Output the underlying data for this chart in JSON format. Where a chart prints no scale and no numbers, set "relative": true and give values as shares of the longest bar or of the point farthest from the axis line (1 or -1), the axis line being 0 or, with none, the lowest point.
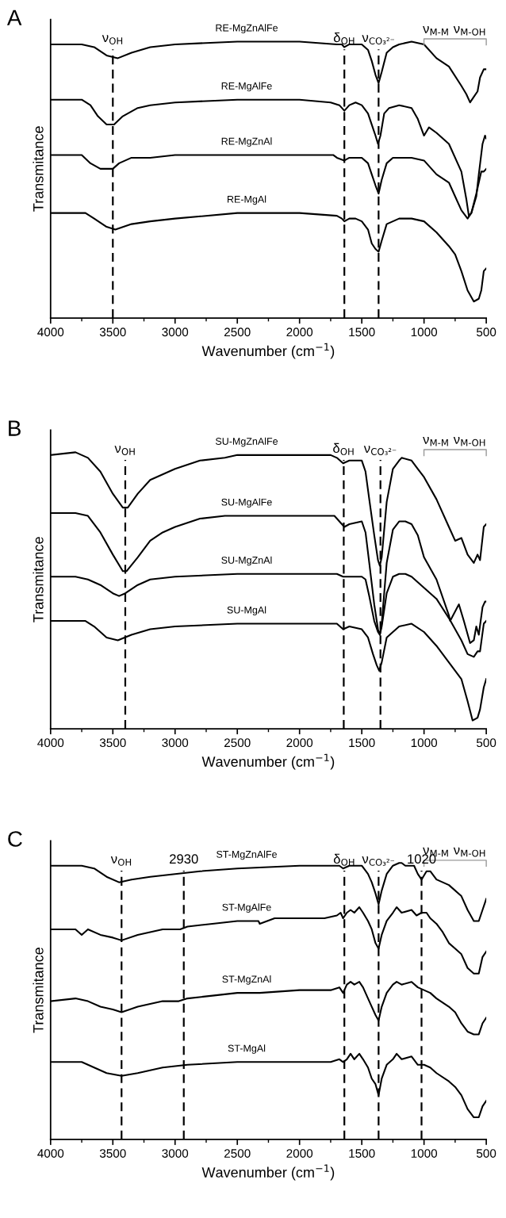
{
  "chart_data": [
    {
      "type": "line",
      "title": "A",
      "xlabel": "Wavenumber (cm$^{−1}$)",
      "ylabel": "Transmitance",
      "relative": true,
      "tick_labels": "x",
      "xlim": [
        4000,
        500
      ],
      "xticks": [
        4000,
        3500,
        3000,
        2500,
        2000,
        1500,
        1000,
        500
      ],
      "ref_lines": [
        {
          "axis": "x",
          "value": 3500,
          "label": "ν$_{OH}$",
          "line_style": "dashed",
          "color": "#000000"
        },
        {
          "axis": "x",
          "value": 1640,
          "label": "δ$_{OH}$",
          "line_style": "dashed",
          "color": "#000000"
        },
        {
          "axis": "x",
          "value": 1365,
          "label": "ν$_{CO₃²⁻}$",
          "line_style": "dashed",
          "color": "#000000"
        }
      ],
      "annotations": [
        "ν$_{M-M}$",
        "ν$_{M-OH}$"
      ],
      "series": [
        {
          "name": "RE-MgZnAlFe",
          "color": "#000000",
          "x": [
            4000,
            3750,
            3650,
            3550,
            3460,
            3350,
            3200,
            3000,
            2500,
            2000,
            1700,
            1660,
            1640,
            1600,
            1500,
            1450,
            1420,
            1390,
            1365,
            1340,
            1300,
            1250,
            1200,
            1100,
            1000,
            900,
            800,
            700,
            660,
            630,
            600,
            570,
            550,
            520,
            500
          ],
          "values": [
            0.99,
            0.99,
            0.98,
            0.95,
            0.94,
            0.96,
            0.98,
            0.99,
            1.0,
            1.0,
            0.99,
            0.99,
            0.98,
            0.99,
            0.99,
            0.97,
            0.93,
            0.88,
            0.85,
            0.89,
            0.96,
            0.98,
            0.99,
            1.0,
            0.99,
            0.94,
            0.91,
            0.84,
            0.81,
            0.78,
            0.8,
            0.82,
            0.87,
            0.9,
            0.9
          ]
        },
        {
          "name": "RE-MgAlFe",
          "color": "#000000",
          "x": [
            4000,
            3750,
            3680,
            3620,
            3550,
            3490,
            3420,
            3300,
            3200,
            3000,
            2500,
            2000,
            1750,
            1680,
            1640,
            1600,
            1550,
            1500,
            1450,
            1420,
            1390,
            1370,
            1350,
            1320,
            1280,
            1200,
            1100,
            1050,
            1000,
            960,
            900,
            800,
            700,
            660,
            640,
            620,
            580,
            560,
            530,
            510,
            500
          ],
          "values": [
            0.79,
            0.79,
            0.77,
            0.73,
            0.7,
            0.7,
            0.73,
            0.76,
            0.77,
            0.78,
            0.79,
            0.79,
            0.78,
            0.77,
            0.75,
            0.77,
            0.78,
            0.77,
            0.74,
            0.7,
            0.66,
            0.63,
            0.66,
            0.74,
            0.76,
            0.77,
            0.76,
            0.72,
            0.66,
            0.69,
            0.67,
            0.63,
            0.53,
            0.43,
            0.37,
            0.38,
            0.44,
            0.52,
            0.63,
            0.66,
            0.65
          ]
        },
        {
          "name": "RE-MgZnAl",
          "color": "#000000",
          "x": [
            4000,
            3750,
            3680,
            3600,
            3500,
            3450,
            3350,
            3200,
            3000,
            2500,
            2000,
            1730,
            1700,
            1640,
            1600,
            1500,
            1450,
            1420,
            1390,
            1365,
            1340,
            1300,
            1250,
            1100,
            1000,
            900,
            800,
            750,
            700,
            650,
            620,
            580,
            560,
            540,
            520,
            500
          ],
          "values": [
            0.59,
            0.59,
            0.56,
            0.54,
            0.54,
            0.56,
            0.58,
            0.58,
            0.59,
            0.59,
            0.59,
            0.59,
            0.58,
            0.57,
            0.58,
            0.58,
            0.56,
            0.52,
            0.48,
            0.45,
            0.5,
            0.56,
            0.58,
            0.58,
            0.57,
            0.52,
            0.49,
            0.44,
            0.39,
            0.36,
            0.38,
            0.45,
            0.49,
            0.53,
            0.53,
            0.54
          ]
        },
        {
          "name": "RE-MgAl",
          "color": "#000000",
          "x": [
            4000,
            3720,
            3650,
            3550,
            3480,
            3350,
            3200,
            3000,
            2500,
            2000,
            1700,
            1660,
            1640,
            1600,
            1550,
            1500,
            1450,
            1420,
            1390,
            1365,
            1340,
            1300,
            1200,
            1100,
            1000,
            900,
            800,
            750,
            700,
            650,
            600,
            560,
            540,
            520,
            500
          ],
          "values": [
            0.38,
            0.38,
            0.36,
            0.33,
            0.32,
            0.34,
            0.35,
            0.36,
            0.38,
            0.38,
            0.37,
            0.36,
            0.35,
            0.36,
            0.36,
            0.35,
            0.32,
            0.27,
            0.25,
            0.24,
            0.28,
            0.34,
            0.36,
            0.36,
            0.35,
            0.31,
            0.26,
            0.23,
            0.17,
            0.1,
            0.06,
            0.07,
            0.1,
            0.17,
            0.18
          ]
        }
      ]
    },
    {
      "type": "line",
      "title": "B",
      "xlabel": "Wavenumber (cm$^{−1}$)",
      "ylabel": "Transmitance",
      "relative": true,
      "tick_labels": "x",
      "xlim": [
        4000,
        500
      ],
      "xticks": [
        4000,
        3500,
        3000,
        2500,
        2000,
        1500,
        1000,
        500
      ],
      "ref_lines": [
        {
          "axis": "x",
          "value": 3400,
          "label": "ν$_{OH}$",
          "line_style": "dashed",
          "color": "#000000"
        },
        {
          "axis": "x",
          "value": 1645,
          "label": "δ$_{OH}$",
          "line_style": "dashed",
          "color": "#000000"
        },
        {
          "axis": "x",
          "value": 1350,
          "label": "ν$_{CO₃²⁻}$",
          "line_style": "dashed",
          "color": "#000000"
        }
      ],
      "annotations": [
        "ν$_{M-M}$",
        "ν$_{M-OH}$"
      ],
      "series": [
        {
          "name": "SU-MgZnAlFe",
          "color": "#000000",
          "x": [
            4000,
            3800,
            3700,
            3600,
            3500,
            3420,
            3380,
            3300,
            3200,
            3100,
            3000,
            2800,
            2600,
            2500,
            2000,
            1750,
            1700,
            1650,
            1600,
            1500,
            1470,
            1440,
            1400,
            1370,
            1355,
            1340,
            1300,
            1250,
            1200,
            1180,
            1100,
            1050,
            1000,
            900,
            800,
            750,
            700,
            650,
            600,
            570,
            550,
            520,
            500
          ],
          "values": [
            0.99,
            1.0,
            0.98,
            0.93,
            0.85,
            0.8,
            0.8,
            0.85,
            0.9,
            0.92,
            0.94,
            0.97,
            0.98,
            0.99,
            0.99,
            0.99,
            0.98,
            0.96,
            0.97,
            0.97,
            0.93,
            0.83,
            0.7,
            0.61,
            0.59,
            0.62,
            0.82,
            0.94,
            0.97,
            0.98,
            0.97,
            0.94,
            0.91,
            0.83,
            0.73,
            0.68,
            0.69,
            0.63,
            0.6,
            0.63,
            0.61,
            0.73,
            0.74
          ]
        },
        {
          "name": "SU-MgAlFe",
          "color": "#000000",
          "x": [
            4000,
            3800,
            3700,
            3600,
            3500,
            3420,
            3390,
            3300,
            3200,
            3100,
            3000,
            2800,
            2600,
            2500,
            2000,
            1720,
            1680,
            1640,
            1600,
            1500,
            1470,
            1440,
            1400,
            1370,
            1355,
            1340,
            1300,
            1250,
            1200,
            1150,
            1100,
            1050,
            1000,
            900,
            800,
            790,
            720,
            680,
            630,
            600,
            580,
            560,
            530,
            510,
            500
          ],
          "values": [
            0.78,
            0.78,
            0.77,
            0.71,
            0.63,
            0.57,
            0.57,
            0.62,
            0.68,
            0.71,
            0.73,
            0.76,
            0.77,
            0.77,
            0.77,
            0.77,
            0.75,
            0.73,
            0.74,
            0.75,
            0.71,
            0.6,
            0.45,
            0.36,
            0.34,
            0.38,
            0.6,
            0.72,
            0.75,
            0.75,
            0.74,
            0.7,
            0.62,
            0.54,
            0.41,
            0.39,
            0.45,
            0.39,
            0.31,
            0.32,
            0.37,
            0.34,
            0.44,
            0.46,
            0.46
          ]
        },
        {
          "name": "SU-MgZnAl",
          "color": "#000000",
          "x": [
            4000,
            3800,
            3700,
            3600,
            3500,
            3450,
            3400,
            3300,
            3200,
            3000,
            2500,
            2000,
            1750,
            1700,
            1650,
            1600,
            1500,
            1470,
            1440,
            1400,
            1370,
            1355,
            1340,
            1300,
            1250,
            1200,
            1150,
            1100,
            1000,
            900,
            800,
            750,
            700,
            650,
            600,
            570,
            550,
            520,
            500
          ],
          "values": [
            0.55,
            0.55,
            0.54,
            0.52,
            0.49,
            0.48,
            0.49,
            0.52,
            0.54,
            0.55,
            0.56,
            0.56,
            0.56,
            0.56,
            0.55,
            0.55,
            0.55,
            0.54,
            0.48,
            0.39,
            0.35,
            0.34,
            0.37,
            0.49,
            0.55,
            0.56,
            0.56,
            0.55,
            0.51,
            0.47,
            0.4,
            0.36,
            0.32,
            0.27,
            0.26,
            0.28,
            0.28,
            0.38,
            0.39
          ]
        },
        {
          "name": "SU-MgAl",
          "color": "#000000",
          "x": [
            4000,
            3720,
            3650,
            3550,
            3460,
            3350,
            3200,
            3000,
            2500,
            2000,
            1700,
            1650,
            1600,
            1500,
            1450,
            1410,
            1380,
            1360,
            1340,
            1300,
            1200,
            1100,
            1000,
            900,
            800,
            700,
            650,
            610,
            570,
            550,
            520,
            500
          ],
          "values": [
            0.39,
            0.39,
            0.37,
            0.33,
            0.32,
            0.34,
            0.36,
            0.37,
            0.38,
            0.38,
            0.38,
            0.36,
            0.37,
            0.36,
            0.33,
            0.27,
            0.23,
            0.21,
            0.24,
            0.33,
            0.37,
            0.38,
            0.35,
            0.3,
            0.24,
            0.18,
            0.1,
            0.03,
            0.04,
            0.07,
            0.15,
            0.18
          ]
        }
      ]
    },
    {
      "type": "line",
      "title": "C",
      "xlabel": "Wavenumber (cm$^{−1}$)",
      "ylabel": "Transmitance",
      "relative": true,
      "tick_labels": "x",
      "xlim": [
        4000,
        500
      ],
      "xticks": [
        4000,
        3500,
        3000,
        2500,
        2000,
        1500,
        1000,
        500
      ],
      "ref_lines": [
        {
          "axis": "x",
          "value": 3430,
          "label": "ν$_{OH}$",
          "line_style": "dashed",
          "color": "#000000"
        },
        {
          "axis": "x",
          "value": 2930,
          "label": "2930",
          "line_style": "dashed",
          "color": "#000000"
        },
        {
          "axis": "x",
          "value": 1640,
          "label": "δ$_{OH}$",
          "line_style": "dashed",
          "color": "#000000"
        },
        {
          "axis": "x",
          "value": 1365,
          "label": "ν$_{CO₃²⁻}$",
          "line_style": "dashed",
          "color": "#000000"
        },
        {
          "axis": "x",
          "value": 1020,
          "label": "1020",
          "line_style": "dashed",
          "color": "#000000"
        }
      ],
      "annotations": [
        "ν$_{M-M}$",
        "ν$_{M-OH}$"
      ],
      "series": [
        {
          "name": "ST-MgZnAlFe",
          "color": "#000000",
          "x": [
            4000,
            3750,
            3650,
            3550,
            3450,
            3350,
            3200,
            3000,
            2800,
            2500,
            2000,
            1750,
            1680,
            1650,
            1600,
            1500,
            1450,
            1420,
            1390,
            1365,
            1340,
            1300,
            1250,
            1200,
            1180,
            1150,
            1120,
            1080,
            1050,
            1020,
            980,
            950,
            900,
            800,
            700,
            650,
            600,
            560,
            530,
            500
          ],
          "values": [
            0.99,
            0.99,
            0.98,
            0.95,
            0.93,
            0.94,
            0.95,
            0.96,
            0.97,
            0.98,
            0.99,
            0.99,
            0.99,
            0.98,
            0.99,
            0.99,
            0.96,
            0.93,
            0.89,
            0.85,
            0.9,
            0.96,
            0.99,
            1.0,
            1.0,
            0.99,
            0.99,
            0.99,
            0.96,
            0.94,
            0.97,
            0.97,
            0.94,
            0.92,
            0.88,
            0.83,
            0.79,
            0.79,
            0.83,
            0.87
          ]
        },
        {
          "name": "ST-MgAlFe",
          "color": "#000000",
          "x": [
            4000,
            3900,
            3800,
            3750,
            3700,
            3600,
            3500,
            3430,
            3300,
            3100,
            2980,
            2960,
            2900,
            2700,
            2500,
            2330,
            2320,
            2200,
            2000,
            1800,
            1700,
            1670,
            1650,
            1620,
            1590,
            1560,
            1520,
            1490,
            1450,
            1420,
            1390,
            1365,
            1340,
            1300,
            1250,
            1220,
            1180,
            1100,
            1060,
            1020,
            980,
            950,
            900,
            850,
            800,
            750,
            700,
            650,
            600,
            560,
            530,
            500
          ],
          "values": [
            0.76,
            0.76,
            0.76,
            0.74,
            0.76,
            0.74,
            0.73,
            0.72,
            0.74,
            0.76,
            0.76,
            0.76,
            0.77,
            0.78,
            0.79,
            0.79,
            0.78,
            0.8,
            0.8,
            0.8,
            0.81,
            0.82,
            0.8,
            0.82,
            0.83,
            0.82,
            0.84,
            0.82,
            0.79,
            0.76,
            0.71,
            0.69,
            0.74,
            0.79,
            0.82,
            0.84,
            0.82,
            0.83,
            0.81,
            0.82,
            0.82,
            0.8,
            0.78,
            0.75,
            0.71,
            0.69,
            0.67,
            0.62,
            0.6,
            0.6,
            0.66,
            0.68
          ]
        },
        {
          "name": "ST-MgZnAl",
          "color": "#000000",
          "x": [
            4000,
            3800,
            3700,
            3600,
            3500,
            3430,
            3300,
            3100,
            2970,
            2900,
            2700,
            2500,
            2330,
            2320,
            2000,
            1750,
            1680,
            1650,
            1620,
            1590,
            1560,
            1520,
            1490,
            1450,
            1420,
            1390,
            1365,
            1340,
            1300,
            1250,
            1220,
            1180,
            1100,
            1050,
            1000,
            950,
            900,
            800,
            750,
            700,
            650,
            600,
            560,
            530,
            500
          ],
          "values": [
            0.5,
            0.51,
            0.5,
            0.48,
            0.47,
            0.46,
            0.48,
            0.5,
            0.5,
            0.51,
            0.52,
            0.53,
            0.53,
            0.53,
            0.54,
            0.54,
            0.55,
            0.53,
            0.56,
            0.57,
            0.56,
            0.57,
            0.55,
            0.51,
            0.48,
            0.45,
            0.43,
            0.48,
            0.53,
            0.56,
            0.57,
            0.56,
            0.57,
            0.55,
            0.54,
            0.53,
            0.51,
            0.48,
            0.46,
            0.42,
            0.39,
            0.38,
            0.38,
            0.42,
            0.44
          ]
        },
        {
          "name": "ST-MgAl",
          "color": "#000000",
          "x": [
            4000,
            3750,
            3650,
            3550,
            3430,
            3300,
            3100,
            2900,
            2500,
            2000,
            1750,
            1680,
            1650,
            1620,
            1590,
            1560,
            1520,
            1490,
            1450,
            1420,
            1390,
            1365,
            1340,
            1300,
            1250,
            1220,
            1180,
            1100,
            1050,
            1000,
            950,
            900,
            800,
            750,
            700,
            650,
            600,
            560,
            530,
            500
          ],
          "values": [
            0.28,
            0.28,
            0.26,
            0.24,
            0.23,
            0.24,
            0.26,
            0.27,
            0.28,
            0.28,
            0.28,
            0.29,
            0.28,
            0.29,
            0.31,
            0.29,
            0.31,
            0.29,
            0.26,
            0.22,
            0.2,
            0.16,
            0.22,
            0.27,
            0.29,
            0.31,
            0.29,
            0.3,
            0.27,
            0.27,
            0.26,
            0.24,
            0.21,
            0.19,
            0.16,
            0.11,
            0.08,
            0.08,
            0.12,
            0.14
          ]
        }
      ]
    }
  ]
}
